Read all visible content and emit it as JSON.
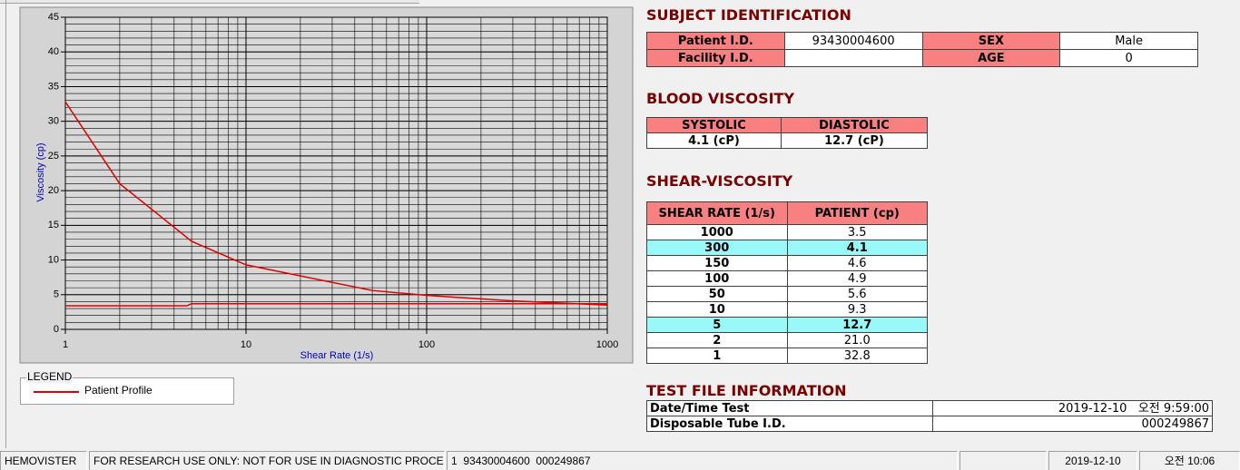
{
  "chart_data": {
    "type": "line",
    "x_label": "Shear Rate (1/s)",
    "y_label": "Viscosity (cp)",
    "xscale": "log",
    "xlim": [
      1,
      1000
    ],
    "ylim": [
      0,
      45
    ],
    "xticks": [
      1,
      10,
      100,
      1000
    ],
    "yticks": [
      0,
      5,
      10,
      15,
      20,
      25,
      30,
      35,
      40,
      45
    ],
    "grid": true,
    "minor_grid": true,
    "series": [
      {
        "name": "Patient Profile",
        "color": "#e00000",
        "x": [
          1,
          2,
          5,
          10,
          50,
          100,
          150,
          300,
          1000
        ],
        "values": [
          32.8,
          21.0,
          12.7,
          9.3,
          5.6,
          4.9,
          4.6,
          4.1,
          3.5
        ]
      },
      {
        "color": "#e00000",
        "x": [
          1,
          4.7,
          5,
          1000
        ],
        "values": [
          3.4,
          3.4,
          3.7,
          3.7
        ]
      }
    ]
  },
  "legend": {
    "title": "LEGEND"
  },
  "subject": {
    "title": "SUBJECT IDENTIFICATION",
    "rows": [
      [
        "Patient I.D.",
        "93430004600",
        "SEX",
        "Male"
      ],
      [
        "Facility I.D.",
        null,
        "AGE",
        "0"
      ]
    ]
  },
  "blood": {
    "title": "BLOOD VISCOSITY",
    "headers": [
      "SYSTOLIC",
      "DIASTOLIC"
    ],
    "values": [
      "4.1 (cP)",
      "12.7 (cP)"
    ]
  },
  "shear": {
    "title": "SHEAR-VISCOSITY",
    "headers": [
      "SHEAR RATE (1/s)",
      "PATIENT (cp)"
    ],
    "rows": [
      {
        "cells": [
          "1000",
          "3.5"
        ]
      },
      {
        "cells": [
          "300",
          "4.1"
        ],
        "highlight": true
      },
      {
        "cells": [
          "150",
          "4.6"
        ]
      },
      {
        "cells": [
          "100",
          "4.9"
        ]
      },
      {
        "cells": [
          "50",
          "5.6"
        ]
      },
      {
        "cells": [
          "10",
          "9.3"
        ]
      },
      {
        "cells": [
          "5",
          "12.7"
        ],
        "highlight": true
      },
      {
        "cells": [
          "2",
          "21.0"
        ]
      },
      {
        "cells": [
          "1",
          "32.8"
        ]
      }
    ]
  },
  "test_file": {
    "title": "TEST FILE INFORMATION",
    "rows": [
      [
        "Date/Time Test",
        "2019-12-10   오전 9:59:00"
      ],
      [
        "Disposable Tube I.D.",
        "000249867"
      ]
    ]
  },
  "status_bar": [
    "HEMOVISTER",
    "FOR RESEARCH USE ONLY: NOT FOR USE IN DIAGNOSTIC PROCEDURES",
    "1  93430004600  000249867",
    null,
    "2019-12-10",
    "오전 10:06"
  ]
}
